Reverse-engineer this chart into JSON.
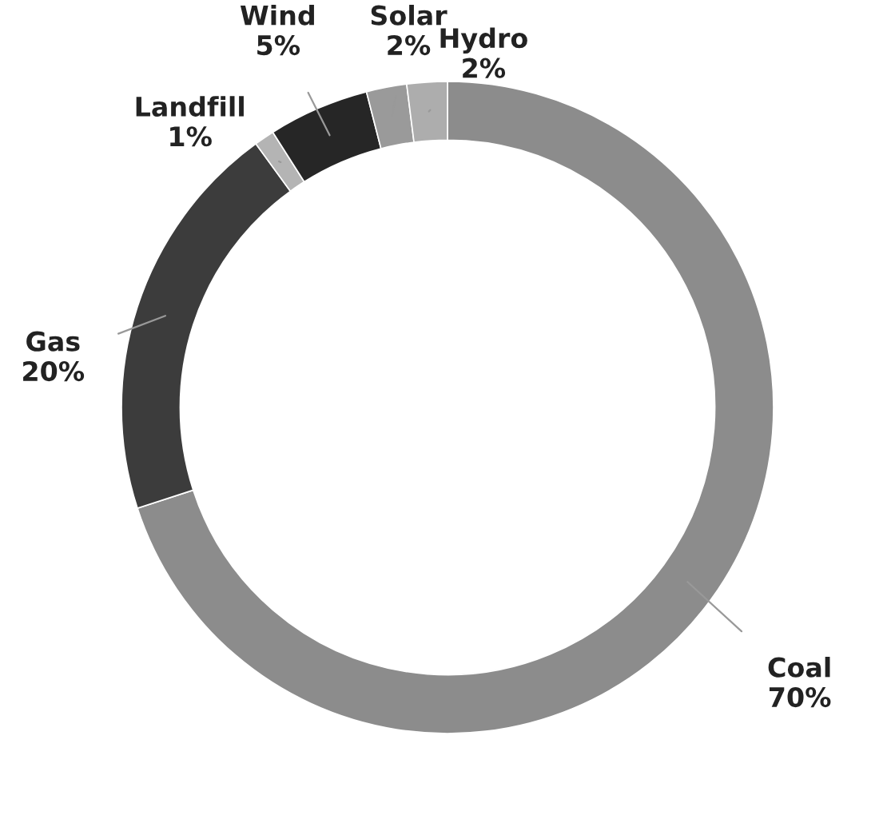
{
  "chart_data": {
    "type": "donut",
    "categories": [
      "Coal",
      "Gas",
      "Landfill",
      "Wind",
      "Solar",
      "Hydro"
    ],
    "values": [
      70,
      20,
      1,
      5,
      2,
      2
    ],
    "value_labels": [
      "70%",
      "20%",
      "1%",
      "5%",
      "2%",
      "2%"
    ],
    "colors": [
      "#8c8c8c",
      "#3c3c3c",
      "#b4b4b4",
      "#262626",
      "#9a9a9a",
      "#adadad"
    ],
    "legend": false
  }
}
